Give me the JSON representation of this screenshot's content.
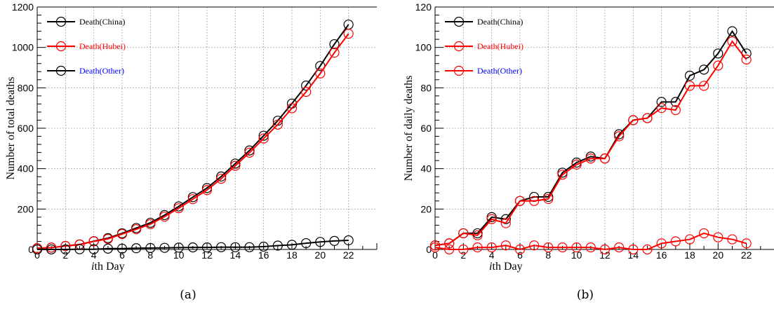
{
  "chart_data": [
    {
      "type": "line",
      "caption": "(a)",
      "xlabel": "ith Day",
      "ylabel": "Number of total deaths",
      "xlim": [
        0,
        24
      ],
      "ylim": [
        0,
        1200
      ],
      "xticks": [
        0,
        2,
        4,
        6,
        8,
        10,
        12,
        14,
        16,
        18,
        20,
        22
      ],
      "yticks": [
        0,
        200,
        400,
        600,
        800,
        1000,
        1200
      ],
      "grid": true,
      "legend_position": "top-left",
      "x": [
        0,
        1,
        2,
        3,
        4,
        5,
        6,
        7,
        8,
        9,
        10,
        11,
        12,
        13,
        14,
        15,
        16,
        17,
        18,
        19,
        20,
        21,
        22
      ],
      "series": [
        {
          "name": "Death(China)",
          "line_color": "#000000",
          "label_color": "#000000",
          "marker": "open-circle",
          "values": [
            6,
            9,
            17,
            25,
            41,
            56,
            80,
            106,
            132,
            170,
            213,
            259,
            304,
            361,
            425,
            490,
            563,
            637,
            722,
            811,
            908,
            1016,
            1113
          ]
        },
        {
          "name": "Death(Hubei)",
          "line_color": "#ff0000",
          "label_color": "#ff0000",
          "marker": "open-circle",
          "values": [
            6,
            9,
            17,
            24,
            40,
            52,
            76,
            100,
            125,
            162,
            204,
            249,
            294,
            350,
            414,
            479,
            549,
            618,
            699,
            780,
            871,
            974,
            1068
          ]
        },
        {
          "name": "Death(Other)",
          "line_color": "#000000",
          "label_color": "#0000ff",
          "marker": "open-circle",
          "values": [
            0,
            0,
            0,
            1,
            1,
            4,
            4,
            6,
            7,
            8,
            9,
            10,
            10,
            11,
            11,
            11,
            14,
            19,
            23,
            31,
            37,
            42,
            45
          ]
        }
      ]
    },
    {
      "type": "line",
      "caption": "(b)",
      "xlabel": "ith Day",
      "ylabel": "Number of daily deaths",
      "xlim": [
        0,
        24
      ],
      "ylim": [
        0,
        120
      ],
      "xticks": [
        0,
        2,
        4,
        6,
        8,
        10,
        12,
        14,
        16,
        18,
        20,
        22
      ],
      "yticks": [
        0,
        20,
        40,
        60,
        80,
        100,
        120
      ],
      "grid": true,
      "legend_position": "top-left",
      "x": [
        0,
        1,
        2,
        3,
        4,
        5,
        6,
        7,
        8,
        9,
        10,
        11,
        12,
        13,
        14,
        15,
        16,
        17,
        18,
        19,
        20,
        21,
        22
      ],
      "series": [
        {
          "name": "Death(China)",
          "line_color": "#000000",
          "label_color": "#000000",
          "marker": "open-circle",
          "values": [
            2,
            3,
            8,
            8,
            16,
            15,
            24,
            26,
            26,
            38,
            43,
            46,
            45,
            57,
            64,
            65,
            73,
            73,
            86,
            89,
            97,
            108,
            97
          ]
        },
        {
          "name": "Death(Hubei)",
          "line_color": "#ff0000",
          "label_color": "#ff0000",
          "marker": "open-circle",
          "values": [
            2,
            3,
            8,
            7,
            15,
            13,
            24,
            24,
            25,
            37,
            42,
            45,
            45,
            56,
            64,
            65,
            70,
            69,
            81,
            81,
            91,
            103,
            94
          ]
        },
        {
          "name": "Death(Other)",
          "line_color": "#ff0000",
          "label_color": "#0000ff",
          "marker": "open-circle",
          "values": [
            1,
            0,
            0,
            1,
            1,
            2,
            0,
            2,
            1,
            1,
            1,
            1,
            0,
            1,
            0,
            0,
            3,
            4,
            5,
            8,
            6,
            5,
            3
          ]
        }
      ]
    }
  ]
}
